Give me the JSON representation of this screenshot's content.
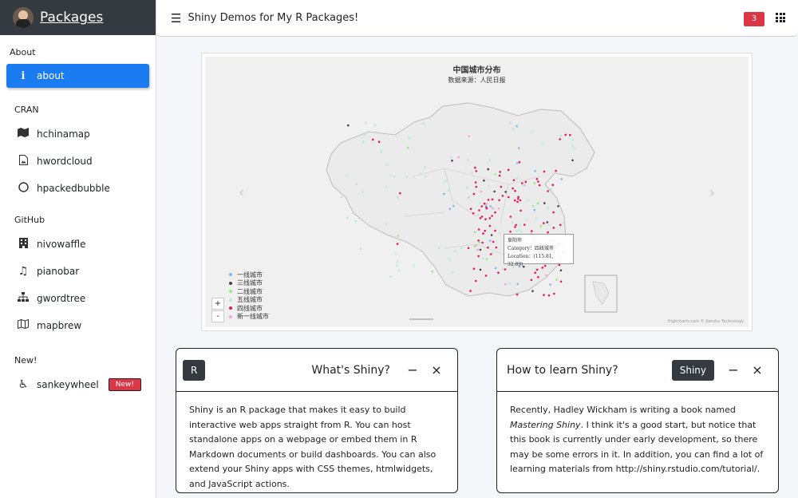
{
  "brand": {
    "name": "Packages"
  },
  "header": {
    "title": "Shiny Demos for My R Packages!",
    "notifications": "3"
  },
  "sidebar": {
    "sections": [
      {
        "heading": "About",
        "items": [
          {
            "label": "about",
            "icon": "info-icon",
            "active": true
          }
        ]
      },
      {
        "heading": "CRAN",
        "items": [
          {
            "label": "hchinamap",
            "icon": "map-icon"
          },
          {
            "label": "hwordcloud",
            "icon": "file-image-icon"
          },
          {
            "label": "hpackedbubble",
            "icon": "circle-icon"
          }
        ]
      },
      {
        "heading": "GitHub",
        "items": [
          {
            "label": "nivowaffle",
            "icon": "building-icon"
          },
          {
            "label": "pianobar",
            "icon": "music-icon"
          },
          {
            "label": "gwordtree",
            "icon": "sitemap-icon"
          },
          {
            "label": "mapbrew",
            "icon": "map-outline-icon"
          }
        ]
      },
      {
        "heading": "New!",
        "items": [
          {
            "label": "sankeywheel",
            "icon": "wheelchair-icon",
            "badge": "New!"
          }
        ]
      }
    ]
  },
  "map": {
    "title": "中国城市分布",
    "subtitle": "数据来源：人民日报",
    "legend": [
      {
        "label": "一线城市",
        "color": "#7cb5ec"
      },
      {
        "label": "三线城市",
        "color": "#434348"
      },
      {
        "label": "二线城市",
        "color": "#90ed7d"
      },
      {
        "label": "五线城市",
        "color": "#b9e8e0"
      },
      {
        "label": "四线城市",
        "color": "#e8165d"
      },
      {
        "label": "新一线城市",
        "color": "#f7a3d4"
      }
    ],
    "tooltip": {
      "city": "阜阳市",
      "category": "Category：四线城市",
      "location": "Location：(115.81, 32.89)"
    },
    "credits": "Highcharts.com © Jianshu Technology",
    "zoom_in": "+",
    "zoom_out": "-"
  },
  "cards": {
    "whats_shiny": {
      "label": "R",
      "title": "What's Shiny?",
      "body": "Shiny is an R package that makes it easy to build interactive web apps straight from R. You can host standalone apps on a webpage or embed them in R Markdown documents or build dashboards. You can also extend your Shiny apps with CSS themes, htmlwidgets, and JavaScript actions."
    },
    "learn_shiny": {
      "label": "Shiny",
      "title": "How to learn Shiny?",
      "body_pre": "Recently, Hadley Wickham is writing a book named ",
      "body_em": "Mastering Shiny",
      "body_post": ". I think it's a good start, but notice that this book is currently under early development, so there may be some errors in it. In addition, you can find a lot of learning materials from http://shiny.rstudio.com/tutorial/."
    }
  },
  "tools": {
    "minimize": "−",
    "close": "×"
  }
}
